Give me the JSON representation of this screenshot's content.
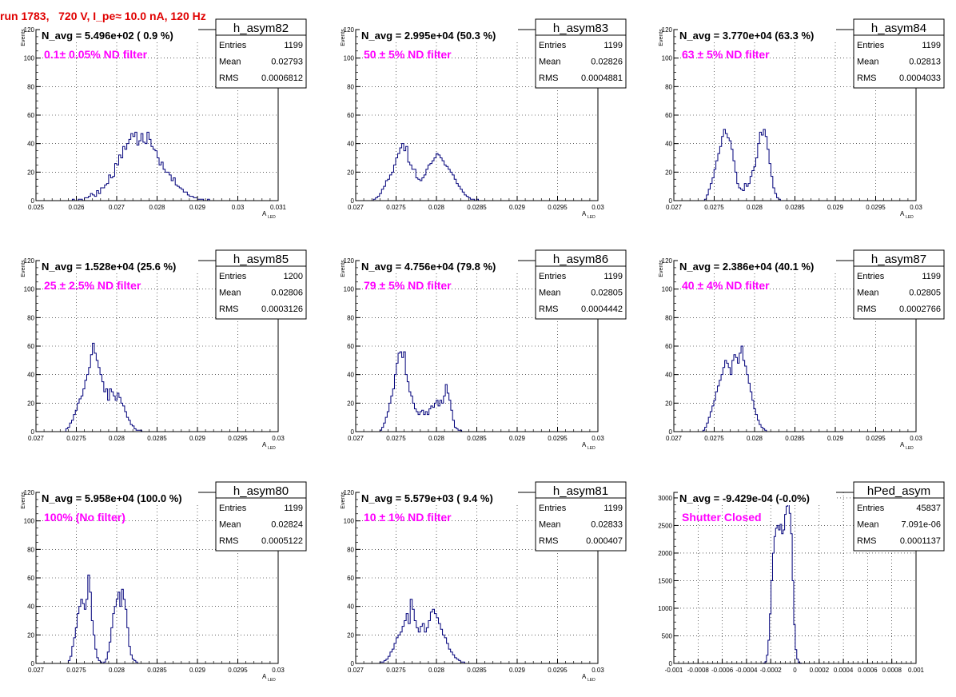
{
  "header": {
    "run_title": "run 1783,   720 V, I_pe≈ 10.0 nA, 120 Hz"
  },
  "colors": {
    "header": "#e00000",
    "histogram": "#00007a",
    "annotation": "#ff00ff",
    "grid": "#000000"
  },
  "chart_data": [
    {
      "type": "histogram",
      "hist_name": "h_asym82",
      "title": "N_avg = 5.496e+02 ( 0.9 %)",
      "annotation": "0.1± 0.05% ND filter",
      "xlabel": "A",
      "xlabel_sub": "LED",
      "ylabel": "Events",
      "xlim": [
        0.025,
        0.031
      ],
      "ylim": [
        0,
        120
      ],
      "xticks": [
        "0.025",
        "0.026",
        "0.027",
        "0.028",
        "0.029",
        "0.03",
        "0.031"
      ],
      "xtick_values": [
        0.025,
        0.026,
        0.027,
        0.028,
        0.029,
        0.03,
        0.031
      ],
      "yticks": [
        "0",
        "20",
        "40",
        "60",
        "80",
        "100",
        "120"
      ],
      "ytick_values": [
        0,
        20,
        40,
        60,
        80,
        100,
        120
      ],
      "stats": [
        {
          "label": "Entries",
          "value": "1199"
        },
        {
          "label": "Mean",
          "value": "0.02793"
        },
        {
          "label": "RMS",
          "value": "0.0006812"
        }
      ],
      "x_start": 0.0259,
      "bin_width": 5e-05,
      "counts": [
        1,
        0,
        0,
        1,
        1,
        0,
        2,
        2,
        3,
        5,
        4,
        3,
        7,
        5,
        9,
        9,
        11,
        12,
        18,
        16,
        17,
        26,
        25,
        32,
        30,
        38,
        36,
        40,
        43,
        47,
        45,
        48,
        39,
        42,
        47,
        41,
        40,
        48,
        43,
        38,
        36,
        35,
        30,
        25,
        27,
        22,
        20,
        20,
        18,
        14,
        16,
        11,
        10,
        9,
        8,
        6,
        6,
        4,
        3,
        3,
        2,
        2,
        1,
        1,
        1,
        0,
        0,
        1
      ]
    },
    {
      "type": "histogram",
      "hist_name": "h_asym83",
      "title": "N_avg = 2.995e+04 (50.3 %)",
      "annotation": "50 ± 5% ND filter",
      "xlabel": "A",
      "xlabel_sub": "LED",
      "ylabel": "Events",
      "xlim": [
        0.027,
        0.03
      ],
      "ylim": [
        0,
        120
      ],
      "xticks": [
        "0.027",
        "0.0275",
        "0.028",
        "0.0285",
        "0.029",
        "0.0295",
        "0.03"
      ],
      "xtick_values": [
        0.027,
        0.0275,
        0.028,
        0.0285,
        0.029,
        0.0295,
        0.03
      ],
      "yticks": [
        "0",
        "20",
        "40",
        "60",
        "80",
        "100",
        "120"
      ],
      "ytick_values": [
        0,
        20,
        40,
        60,
        80,
        100,
        120
      ],
      "stats": [
        {
          "label": "Entries",
          "value": "1199"
        },
        {
          "label": "Mean",
          "value": "0.02826"
        },
        {
          "label": "RMS",
          "value": "0.0004881"
        }
      ],
      "x_start": 0.02722,
      "bin_width": 2.5e-05,
      "counts": [
        1,
        2,
        3,
        5,
        8,
        10,
        14,
        15,
        18,
        20,
        25,
        30,
        33,
        37,
        40,
        35,
        38,
        27,
        25,
        22,
        22,
        16,
        15,
        14,
        16,
        18,
        22,
        25,
        26,
        28,
        30,
        33,
        32,
        30,
        28,
        25,
        24,
        22,
        20,
        18,
        15,
        12,
        10,
        8,
        6,
        4,
        3,
        2,
        1,
        1,
        0,
        1
      ]
    },
    {
      "type": "histogram",
      "hist_name": "h_asym84",
      "title": "N_avg = 3.770e+04 (63.3 %)",
      "annotation": "63 ± 5% ND filter",
      "xlabel": "A",
      "xlabel_sub": "LED",
      "ylabel": "Events",
      "xlim": [
        0.027,
        0.03
      ],
      "ylim": [
        0,
        120
      ],
      "xticks": [
        "0.027",
        "0.0275",
        "0.028",
        "0.0285",
        "0.029",
        "0.0295",
        "0.03"
      ],
      "xtick_values": [
        0.027,
        0.0275,
        0.028,
        0.0285,
        0.029,
        0.0295,
        0.03
      ],
      "yticks": [
        "0",
        "20",
        "40",
        "60",
        "80",
        "100",
        "120"
      ],
      "ytick_values": [
        0,
        20,
        40,
        60,
        80,
        100,
        120
      ],
      "stats": [
        {
          "label": "Entries",
          "value": "1199"
        },
        {
          "label": "Mean",
          "value": "0.02813"
        },
        {
          "label": "RMS",
          "value": "0.0004033"
        }
      ],
      "x_start": 0.02738,
      "bin_width": 2.35e-05,
      "counts": [
        1,
        4,
        8,
        12,
        16,
        22,
        28,
        33,
        38,
        45,
        50,
        47,
        44,
        42,
        36,
        28,
        20,
        12,
        9,
        8,
        7,
        12,
        10,
        12,
        17,
        21,
        24,
        30,
        40,
        48,
        46,
        50,
        45,
        36,
        26,
        17,
        9,
        5,
        2,
        1
      ]
    },
    {
      "type": "histogram",
      "hist_name": "h_asym85",
      "title": "N_avg = 1.528e+04 (25.6 %)",
      "annotation": "25 ± 2.5% ND filter",
      "xlabel": "A",
      "xlabel_sub": "LED",
      "ylabel": "Events",
      "xlim": [
        0.027,
        0.03
      ],
      "ylim": [
        0,
        120
      ],
      "xticks": [
        "0.027",
        "0.0275",
        "0.028",
        "0.0285",
        "0.029",
        "0.0295",
        "0.03"
      ],
      "xtick_values": [
        0.027,
        0.0275,
        0.028,
        0.0285,
        0.029,
        0.0295,
        0.03
      ],
      "yticks": [
        "0",
        "20",
        "40",
        "60",
        "80",
        "100",
        "120"
      ],
      "ytick_values": [
        0,
        20,
        40,
        60,
        80,
        100,
        120
      ],
      "stats": [
        {
          "label": "Entries",
          "value": "1200"
        },
        {
          "label": "Mean",
          "value": "0.02806"
        },
        {
          "label": "RMS",
          "value": "0.0003126"
        }
      ],
      "x_start": 0.02737,
      "bin_width": 2.35e-05,
      "counts": [
        2,
        3,
        6,
        8,
        12,
        15,
        20,
        23,
        25,
        30,
        36,
        40,
        45,
        54,
        62,
        55,
        50,
        45,
        40,
        35,
        28,
        30,
        22,
        30,
        28,
        25,
        22,
        27,
        24,
        20,
        18,
        14,
        10,
        8,
        5,
        4,
        2,
        1,
        1,
        1
      ]
    },
    {
      "type": "histogram",
      "hist_name": "h_asym86",
      "title": "N_avg = 4.756e+04 (79.8 %)",
      "annotation": "79 ± 5% ND filter",
      "xlabel": "A",
      "xlabel_sub": "LED",
      "ylabel": "Events",
      "xlim": [
        0.027,
        0.03
      ],
      "ylim": [
        0,
        120
      ],
      "xticks": [
        "0.027",
        "0.0275",
        "0.028",
        "0.0285",
        "0.029",
        "0.0295",
        "0.03"
      ],
      "xtick_values": [
        0.027,
        0.0275,
        0.028,
        0.0285,
        0.029,
        0.0295,
        0.03
      ],
      "yticks": [
        "0",
        "20",
        "40",
        "60",
        "80",
        "100",
        "120"
      ],
      "ytick_values": [
        0,
        20,
        40,
        60,
        80,
        100,
        120
      ],
      "stats": [
        {
          "label": "Entries",
          "value": "1199"
        },
        {
          "label": "Mean",
          "value": "0.02805"
        },
        {
          "label": "RMS",
          "value": "0.0004442"
        }
      ],
      "x_start": 0.0273,
      "bin_width": 2.25e-05,
      "counts": [
        1,
        3,
        6,
        10,
        14,
        20,
        25,
        30,
        40,
        48,
        55,
        56,
        52,
        56,
        40,
        35,
        28,
        25,
        20,
        16,
        14,
        12,
        14,
        15,
        12,
        14,
        12,
        16,
        18,
        17,
        20,
        22,
        18,
        22,
        20,
        25,
        33,
        27,
        22,
        15,
        8,
        3,
        2,
        1,
        1
      ]
    },
    {
      "type": "histogram",
      "hist_name": "h_asym87",
      "title": "N_avg = 2.386e+04 (40.1 %)",
      "annotation": "40 ± 4% ND filter",
      "xlabel": "A",
      "xlabel_sub": "LED",
      "ylabel": "Events",
      "xlim": [
        0.027,
        0.03
      ],
      "ylim": [
        0,
        120
      ],
      "xticks": [
        "0.027",
        "0.0275",
        "0.028",
        "0.0285",
        "0.029",
        "0.0295",
        "0.03"
      ],
      "xtick_values": [
        0.027,
        0.0275,
        0.028,
        0.0285,
        0.029,
        0.0295,
        0.03
      ],
      "yticks": [
        "0",
        "20",
        "40",
        "60",
        "80",
        "100",
        "120"
      ],
      "ytick_values": [
        0,
        20,
        40,
        60,
        80,
        100,
        120
      ],
      "stats": [
        {
          "label": "Entries",
          "value": "1199"
        },
        {
          "label": "Mean",
          "value": "0.02805"
        },
        {
          "label": "RMS",
          "value": "0.0002766"
        }
      ],
      "x_start": 0.02736,
      "bin_width": 2.25e-05,
      "counts": [
        1,
        3,
        6,
        10,
        14,
        18,
        22,
        28,
        32,
        36,
        40,
        45,
        50,
        48,
        45,
        40,
        50,
        54,
        52,
        48,
        55,
        60,
        50,
        46,
        40,
        34,
        28,
        22,
        16,
        12,
        8,
        5,
        3,
        2,
        1
      ]
    },
    {
      "type": "histogram",
      "hist_name": "h_asym80",
      "title": "N_avg = 5.958e+04 (100.0 %)",
      "annotation": "100% (No filter)",
      "xlabel": "A",
      "xlabel_sub": "LED",
      "ylabel": "Events",
      "xlim": [
        0.027,
        0.03
      ],
      "ylim": [
        0,
        120
      ],
      "xticks": [
        "0.027",
        "0.0275",
        "0.028",
        "0.0285",
        "0.029",
        "0.0295",
        "0.03"
      ],
      "xtick_values": [
        0.027,
        0.0275,
        0.028,
        0.0285,
        0.029,
        0.0295,
        0.03
      ],
      "yticks": [
        "0",
        "20",
        "40",
        "60",
        "80",
        "100",
        "120"
      ],
      "ytick_values": [
        0,
        20,
        40,
        60,
        80,
        100,
        120
      ],
      "stats": [
        {
          "label": "Entries",
          "value": "1199"
        },
        {
          "label": "Mean",
          "value": "0.02824"
        },
        {
          "label": "RMS",
          "value": "0.0005122"
        }
      ],
      "x_start": 0.0274,
      "bin_width": 2.2e-05,
      "counts": [
        2,
        5,
        12,
        18,
        25,
        35,
        40,
        45,
        42,
        38,
        45,
        62,
        50,
        30,
        20,
        10,
        4,
        2,
        1,
        0,
        1,
        3,
        8,
        15,
        25,
        35,
        40,
        45,
        50,
        40,
        52,
        45,
        38,
        25,
        12,
        6,
        3,
        2,
        1
      ]
    },
    {
      "type": "histogram",
      "hist_name": "h_asym81",
      "title": "N_avg = 5.579e+03 ( 9.4 %)",
      "annotation": "10 ± 1% ND filter",
      "xlabel": "A",
      "xlabel_sub": "LED",
      "ylabel": "Events",
      "xlim": [
        0.027,
        0.03
      ],
      "ylim": [
        0,
        120
      ],
      "xticks": [
        "0.027",
        "0.0275",
        "0.028",
        "0.0285",
        "0.029",
        "0.0295",
        "0.03"
      ],
      "xtick_values": [
        0.027,
        0.0275,
        0.028,
        0.0285,
        0.029,
        0.0295,
        0.03
      ],
      "yticks": [
        "0",
        "20",
        "40",
        "60",
        "80",
        "100",
        "120"
      ],
      "ytick_values": [
        0,
        20,
        40,
        60,
        80,
        100,
        120
      ],
      "stats": [
        {
          "label": "Entries",
          "value": "1199"
        },
        {
          "label": "Mean",
          "value": "0.02833"
        },
        {
          "label": "RMS",
          "value": "0.000407"
        }
      ],
      "x_start": 0.0273,
      "bin_width": 2.5e-05,
      "counts": [
        1,
        1,
        2,
        3,
        5,
        8,
        10,
        14,
        18,
        20,
        22,
        26,
        30,
        35,
        28,
        45,
        38,
        30,
        25,
        22,
        26,
        28,
        22,
        25,
        30,
        36,
        38,
        35,
        32,
        28,
        24,
        20,
        18,
        14,
        10,
        8,
        6,
        4,
        3,
        2,
        1,
        1
      ]
    },
    {
      "type": "histogram",
      "hist_name": "hPed_asym",
      "title": "N_avg = -9.429e-04 (-0.0%)",
      "annotation": "Shutter Closed",
      "xlabel": "",
      "xlabel_sub": "",
      "ylabel": "",
      "xlim": [
        -0.001,
        0.001
      ],
      "ylim": [
        0,
        3100
      ],
      "xticks": [
        "-0.001",
        "-0.0008",
        "-0.0006",
        "-0.0004",
        "-0.0002",
        "0",
        "0.0002",
        "0.0004",
        "0.0006",
        "0.0008",
        "0.001"
      ],
      "xtick_values": [
        -0.001,
        -0.0008,
        -0.0006,
        -0.0004,
        -0.0002,
        0,
        0.0002,
        0.0004,
        0.0006,
        0.0008,
        0.001
      ],
      "yticks": [
        "0",
        "500",
        "1000",
        "1500",
        "2000",
        "2500",
        "3000"
      ],
      "ytick_values": [
        0,
        500,
        1000,
        1500,
        2000,
        2500,
        3000
      ],
      "stats": [
        {
          "label": "Entries",
          "value": "45837"
        },
        {
          "label": "Mean",
          "value": "7.091e-06"
        },
        {
          "label": "RMS",
          "value": "0.0001137"
        }
      ],
      "x_start": -0.00026,
      "bin_width": 1.25e-05,
      "counts": [
        5,
        30,
        150,
        420,
        900,
        1500,
        2000,
        2300,
        2450,
        2500,
        2420,
        2520,
        2350,
        2420,
        2700,
        2850,
        2900,
        2720,
        2350,
        1500,
        700,
        250,
        80,
        20,
        5
      ]
    }
  ]
}
